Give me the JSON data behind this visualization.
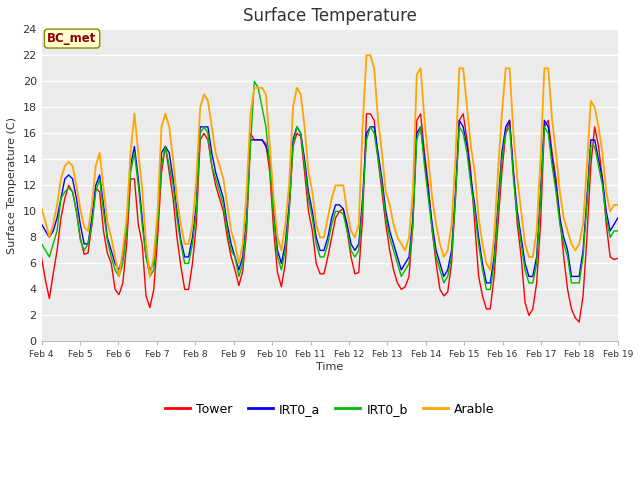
{
  "title": "Surface Temperature",
  "ylabel": "Surface Temperature (C)",
  "xlabel": "Time",
  "annotation": "BC_met",
  "ylim": [
    0,
    24
  ],
  "yticks": [
    0,
    2,
    4,
    6,
    8,
    10,
    12,
    14,
    16,
    18,
    20,
    22,
    24
  ],
  "xtick_labels": [
    "Feb 4",
    "Feb 5",
    "Feb 6",
    "Feb 7",
    "Feb 8",
    "Feb 9",
    "Feb 10",
    "Feb 11",
    "Feb 12",
    "Feb 13",
    "Feb 14",
    "Feb 15",
    "Feb 16",
    "Feb 17",
    "Feb 18",
    "Feb 19"
  ],
  "colors": {
    "Tower": "#ff0000",
    "IRT0_a": "#0000ff",
    "IRT0_b": "#00bb00",
    "Arable": "#ffa500"
  },
  "bg_color": "#ebebeb",
  "fig_color": "#ffffff",
  "title_fontsize": 12,
  "Tower": [
    6.4,
    4.7,
    3.3,
    5.2,
    7.0,
    9.5,
    11.0,
    12.0,
    11.5,
    10.0,
    8.0,
    6.7,
    6.8,
    9.0,
    11.8,
    11.5,
    8.5,
    6.8,
    6.0,
    4.0,
    3.6,
    4.5,
    7.5,
    12.5,
    12.5,
    9.0,
    7.5,
    3.5,
    2.6,
    4.0,
    8.0,
    13.0,
    15.0,
    13.0,
    11.0,
    8.0,
    5.8,
    4.0,
    4.0,
    6.0,
    9.0,
    15.5,
    16.0,
    15.5,
    13.5,
    12.0,
    11.0,
    10.0,
    8.0,
    6.5,
    5.5,
    4.3,
    5.4,
    8.5,
    16.0,
    15.5,
    15.5,
    15.5,
    15.2,
    13.0,
    8.5,
    5.3,
    4.2,
    6.0,
    10.0,
    15.0,
    16.0,
    15.8,
    13.0,
    10.0,
    8.5,
    6.0,
    5.2,
    5.2,
    6.5,
    8.0,
    9.5,
    10.0,
    10.2,
    8.5,
    6.5,
    5.2,
    5.3,
    9.5,
    17.5,
    17.5,
    17.0,
    14.0,
    11.5,
    9.0,
    7.0,
    5.5,
    4.5,
    4.0,
    4.2,
    5.0,
    9.0,
    17.0,
    17.5,
    14.5,
    12.0,
    8.5,
    6.0,
    4.0,
    3.5,
    3.8,
    6.0,
    11.0,
    17.0,
    17.5,
    15.5,
    13.0,
    9.0,
    5.0,
    3.5,
    2.5,
    2.5,
    5.0,
    9.0,
    13.0,
    16.0,
    17.0,
    13.0,
    9.0,
    6.5,
    3.0,
    2.0,
    2.5,
    4.5,
    9.0,
    16.5,
    17.0,
    14.5,
    12.5,
    9.5,
    6.5,
    4.0,
    2.5,
    1.8,
    1.5,
    3.5,
    8.0,
    13.5,
    16.5,
    15.0,
    12.5,
    9.0,
    6.5,
    6.3,
    6.4
  ],
  "IRT0_a": [
    9.0,
    8.5,
    8.0,
    8.5,
    9.5,
    11.0,
    12.5,
    12.8,
    12.5,
    11.0,
    9.0,
    7.5,
    7.5,
    9.5,
    12.0,
    12.8,
    10.5,
    8.0,
    7.0,
    6.0,
    5.5,
    6.5,
    9.0,
    13.5,
    15.0,
    12.5,
    9.5,
    6.5,
    5.5,
    6.0,
    9.5,
    14.5,
    15.0,
    14.5,
    12.5,
    10.0,
    7.8,
    6.5,
    6.5,
    8.0,
    10.5,
    16.5,
    16.5,
    16.5,
    14.5,
    13.0,
    12.0,
    11.0,
    9.0,
    7.5,
    6.5,
    5.5,
    6.5,
    9.5,
    15.5,
    15.5,
    15.5,
    15.5,
    15.0,
    14.0,
    10.0,
    7.0,
    6.0,
    7.5,
    10.5,
    15.5,
    16.5,
    16.0,
    14.0,
    11.5,
    10.0,
    8.0,
    7.0,
    7.0,
    8.0,
    9.5,
    10.5,
    10.5,
    10.2,
    9.0,
    7.5,
    7.0,
    7.5,
    11.0,
    16.0,
    16.5,
    16.5,
    14.5,
    12.5,
    10.0,
    8.5,
    7.5,
    6.5,
    5.5,
    6.0,
    6.5,
    9.5,
    16.0,
    16.5,
    14.0,
    11.5,
    9.0,
    7.0,
    6.0,
    5.0,
    5.5,
    7.0,
    11.5,
    17.0,
    16.5,
    15.0,
    12.5,
    10.5,
    8.0,
    6.0,
    4.5,
    4.5,
    6.5,
    10.5,
    14.5,
    16.5,
    17.0,
    13.0,
    10.0,
    8.0,
    6.0,
    5.0,
    5.0,
    6.5,
    11.5,
    17.0,
    16.5,
    14.0,
    12.0,
    9.5,
    8.0,
    7.0,
    5.0,
    5.0,
    5.0,
    7.0,
    11.0,
    15.5,
    15.5,
    14.0,
    12.5,
    10.0,
    8.5,
    9.0,
    9.5
  ],
  "IRT0_b": [
    7.5,
    7.0,
    6.5,
    7.5,
    8.5,
    11.0,
    11.5,
    11.8,
    11.5,
    10.0,
    7.8,
    7.0,
    7.5,
    9.0,
    11.5,
    12.5,
    10.0,
    7.8,
    6.5,
    5.5,
    5.0,
    6.0,
    8.5,
    13.0,
    14.5,
    12.0,
    9.0,
    6.5,
    5.0,
    5.5,
    9.0,
    13.5,
    15.0,
    13.5,
    12.0,
    9.5,
    7.5,
    6.0,
    6.0,
    7.5,
    10.0,
    16.0,
    16.5,
    16.0,
    13.5,
    12.5,
    11.5,
    10.5,
    8.5,
    7.0,
    6.5,
    5.0,
    6.0,
    9.0,
    15.0,
    20.0,
    19.5,
    18.0,
    16.5,
    13.5,
    9.5,
    6.5,
    5.5,
    7.0,
    10.0,
    15.0,
    16.5,
    16.0,
    13.5,
    11.0,
    9.5,
    7.5,
    6.5,
    6.5,
    7.5,
    9.0,
    10.0,
    10.0,
    9.8,
    8.5,
    7.0,
    6.5,
    7.0,
    10.5,
    15.5,
    16.5,
    16.0,
    14.0,
    12.0,
    9.5,
    8.0,
    7.0,
    6.0,
    5.0,
    5.5,
    6.0,
    9.0,
    15.5,
    16.5,
    13.5,
    11.0,
    8.5,
    6.5,
    5.5,
    4.5,
    5.0,
    6.5,
    11.0,
    16.5,
    16.0,
    14.5,
    12.0,
    10.0,
    7.5,
    5.5,
    4.0,
    4.0,
    6.0,
    10.0,
    14.0,
    16.0,
    16.5,
    12.5,
    9.5,
    7.5,
    5.5,
    4.5,
    4.5,
    6.0,
    11.0,
    16.5,
    16.0,
    13.5,
    11.5,
    9.0,
    7.5,
    6.5,
    4.5,
    4.5,
    4.5,
    6.5,
    10.5,
    15.0,
    15.0,
    13.5,
    12.0,
    9.5,
    8.0,
    8.5,
    8.5
  ],
  "Arable": [
    10.2,
    9.2,
    8.0,
    9.0,
    10.5,
    12.5,
    13.5,
    13.8,
    13.5,
    12.0,
    10.2,
    8.8,
    8.5,
    10.5,
    13.5,
    14.5,
    11.8,
    9.2,
    8.0,
    6.5,
    5.0,
    7.0,
    9.5,
    14.5,
    17.5,
    14.5,
    11.8,
    7.5,
    5.0,
    6.5,
    10.0,
    16.5,
    17.5,
    16.5,
    14.0,
    11.0,
    9.0,
    7.5,
    7.5,
    9.0,
    12.5,
    18.0,
    19.0,
    18.5,
    16.5,
    14.5,
    13.5,
    12.5,
    10.5,
    8.5,
    7.5,
    6.0,
    7.5,
    11.5,
    17.5,
    19.5,
    19.5,
    19.5,
    19.0,
    15.0,
    11.0,
    8.0,
    7.0,
    9.0,
    12.0,
    18.0,
    19.5,
    19.0,
    16.5,
    13.0,
    11.5,
    9.0,
    8.0,
    8.0,
    9.5,
    11.0,
    12.0,
    12.0,
    12.0,
    10.0,
    8.5,
    8.0,
    9.0,
    16.5,
    22.0,
    22.0,
    21.0,
    17.0,
    14.5,
    11.5,
    10.5,
    9.0,
    8.0,
    7.5,
    7.0,
    8.0,
    11.5,
    20.5,
    21.0,
    17.0,
    14.0,
    11.0,
    9.0,
    7.5,
    6.5,
    7.0,
    9.0,
    14.0,
    21.0,
    21.0,
    18.0,
    15.0,
    13.0,
    9.5,
    7.5,
    6.0,
    5.5,
    8.0,
    13.0,
    17.5,
    21.0,
    21.0,
    16.0,
    12.5,
    10.0,
    7.5,
    6.5,
    6.5,
    8.5,
    14.0,
    21.0,
    21.0,
    17.0,
    14.5,
    11.5,
    9.5,
    8.5,
    7.5,
    7.0,
    7.5,
    9.0,
    13.5,
    18.5,
    18.0,
    16.5,
    14.5,
    11.5,
    10.0,
    10.5,
    10.5
  ]
}
